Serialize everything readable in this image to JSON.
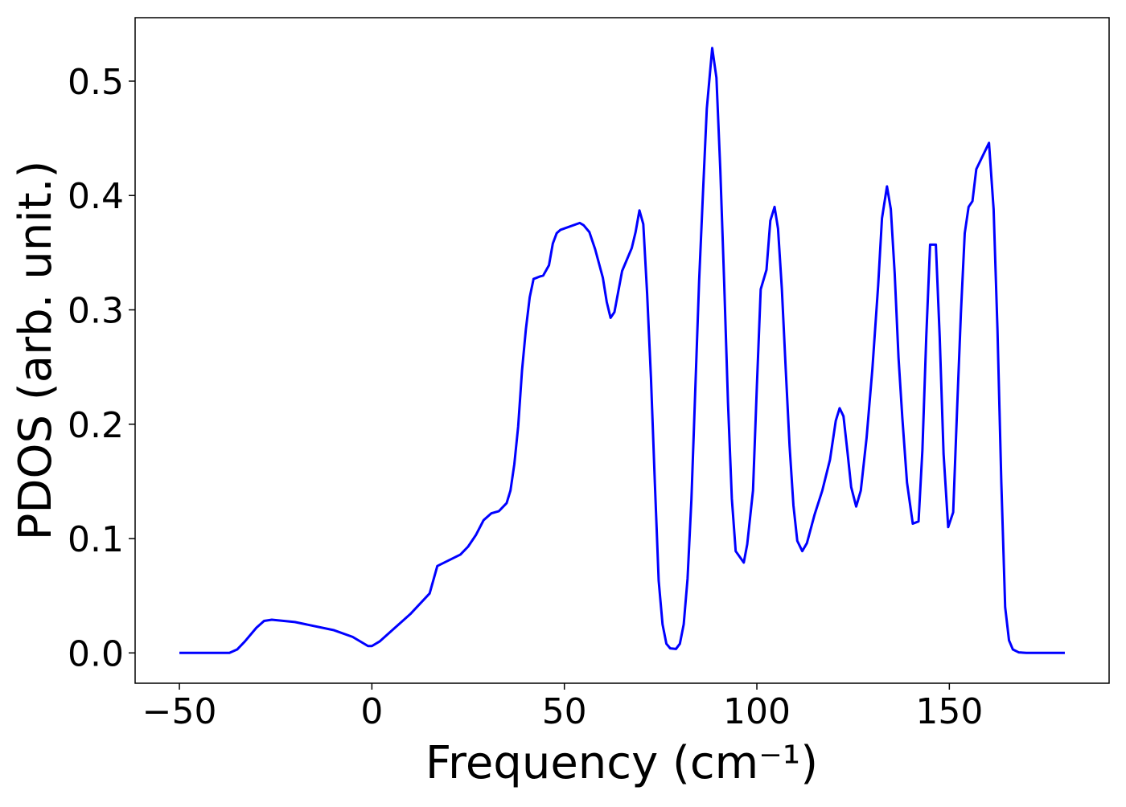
{
  "chart_data": {
    "type": "line",
    "xlabel": "Frequency (cm⁻¹)",
    "ylabel": "PDOS (arb. unit.)",
    "color": "#0000ff",
    "xlim": [
      -61.5,
      191.5
    ],
    "ylim": [
      -0.0265,
      0.5555
    ],
    "xticks": [
      {
        "value": -50,
        "label": "−50"
      },
      0,
      50,
      100,
      150
    ],
    "yticks": [
      {
        "value": 0,
        "label": "0.0"
      },
      0.1,
      0.2,
      0.3,
      0.4,
      0.5
    ],
    "x": [
      -50,
      -37,
      -35,
      -33,
      -30,
      -28,
      -26,
      -20,
      -10,
      -5,
      -1,
      0,
      2,
      5,
      10,
      15,
      17,
      20,
      23,
      25,
      27,
      29,
      31,
      33,
      35,
      36,
      37,
      38,
      39,
      40,
      41,
      42,
      43.5,
      44.5,
      46,
      47,
      48,
      49,
      54,
      55,
      56.5,
      58,
      60,
      61,
      62,
      63,
      65,
      67.5,
      68.5,
      69.5,
      70.5,
      71.5,
      72.5,
      73.5,
      74.5,
      75.5,
      76.5,
      77.5,
      79,
      80,
      81,
      82,
      83,
      85,
      86,
      87,
      88.4,
      89.5,
      90.5,
      91.5,
      92.5,
      93.5,
      94.5,
      96.6,
      97.5,
      99,
      100,
      101,
      102.5,
      103.5,
      104.6,
      105.5,
      106.5,
      107.5,
      108.5,
      109.5,
      110.5,
      111.8,
      113,
      115,
      117,
      119,
      120.5,
      121.5,
      122.5,
      123.5,
      124.5,
      125.8,
      127,
      128.5,
      130,
      131.5,
      132.5,
      133.8,
      134.8,
      135.8,
      136.8,
      137.8,
      139,
      140.5,
      142,
      143,
      144,
      145,
      146.5,
      147.5,
      148.5,
      149.7,
      151,
      152,
      153,
      154,
      155,
      156,
      157,
      159,
      160.3,
      161.5,
      162.5,
      163.5,
      164.5,
      165.5,
      166.5,
      168,
      170,
      180
    ],
    "values": [
      0,
      0,
      0.003,
      0.01,
      0.022,
      0.028,
      0.029,
      0.027,
      0.02,
      0.014,
      0.006,
      0.006,
      0.01,
      0.019,
      0.034,
      0.052,
      0.076,
      0.081,
      0.086,
      0.093,
      0.103,
      0.116,
      0.122,
      0.124,
      0.131,
      0.142,
      0.165,
      0.198,
      0.247,
      0.283,
      0.311,
      0.327,
      0.329,
      0.33,
      0.339,
      0.358,
      0.367,
      0.37,
      0.376,
      0.374,
      0.368,
      0.353,
      0.328,
      0.307,
      0.293,
      0.298,
      0.334,
      0.354,
      0.368,
      0.387,
      0.375,
      0.314,
      0.24,
      0.149,
      0.063,
      0.025,
      0.008,
      0.004,
      0.0035,
      0.008,
      0.025,
      0.065,
      0.134,
      0.325,
      0.402,
      0.476,
      0.529,
      0.503,
      0.423,
      0.325,
      0.219,
      0.135,
      0.089,
      0.079,
      0.095,
      0.142,
      0.233,
      0.318,
      0.335,
      0.378,
      0.39,
      0.371,
      0.318,
      0.248,
      0.181,
      0.129,
      0.098,
      0.089,
      0.096,
      0.121,
      0.142,
      0.169,
      0.203,
      0.214,
      0.207,
      0.177,
      0.145,
      0.128,
      0.142,
      0.188,
      0.248,
      0.321,
      0.38,
      0.408,
      0.388,
      0.332,
      0.258,
      0.205,
      0.149,
      0.113,
      0.115,
      0.177,
      0.276,
      0.357,
      0.357,
      0.276,
      0.174,
      0.11,
      0.123,
      0.212,
      0.297,
      0.367,
      0.39,
      0.395,
      0.423,
      0.437,
      0.446,
      0.388,
      0.283,
      0.149,
      0.04,
      0.011,
      0.003,
      0.0005,
      0,
      0
    ]
  }
}
